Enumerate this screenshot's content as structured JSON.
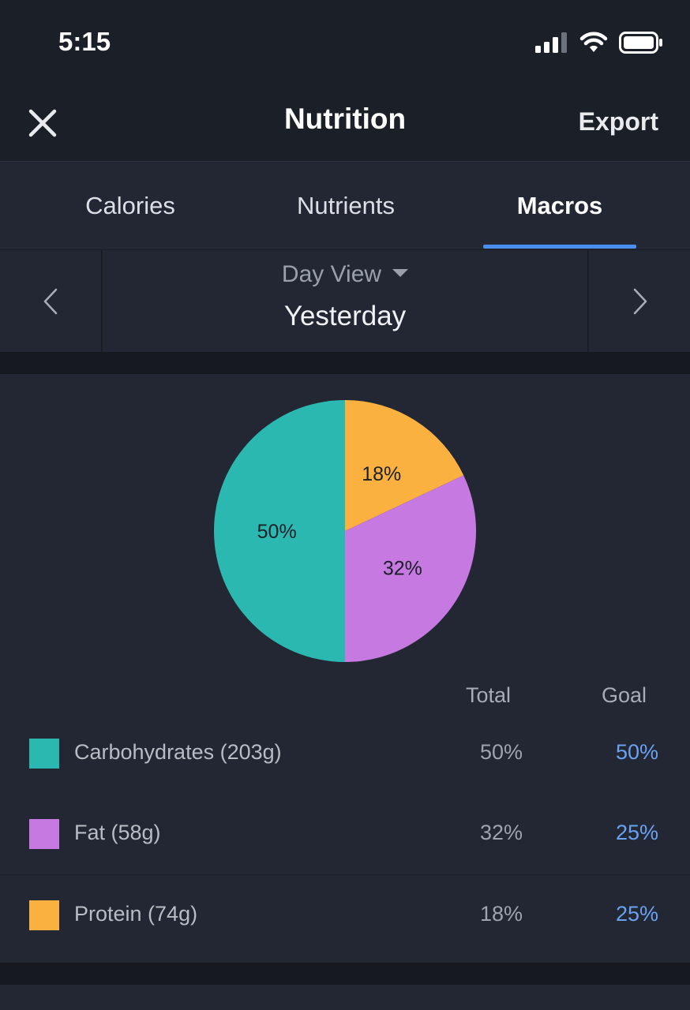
{
  "status_bar": {
    "time": "5:15"
  },
  "header": {
    "title": "Nutrition",
    "export_label": "Export"
  },
  "tabs": [
    {
      "label": "Calories",
      "active": false
    },
    {
      "label": "Nutrients",
      "active": false
    },
    {
      "label": "Macros",
      "active": true
    }
  ],
  "day_selector": {
    "view_label": "Day View",
    "day_label": "Yesterday"
  },
  "chart_data": {
    "type": "pie",
    "categories": [
      "Carbohydrates",
      "Fat",
      "Protein"
    ],
    "values": [
      50,
      32,
      18
    ],
    "data_labels": [
      "50%",
      "32%",
      "18%"
    ],
    "colors": [
      "#2bb8b0",
      "#c679e0",
      "#fbb140"
    ]
  },
  "table": {
    "headers": {
      "total": "Total",
      "goal": "Goal"
    },
    "rows": [
      {
        "label": "Carbohydrates (203g)",
        "total": "50%",
        "goal": "50%",
        "color": "#2bb8b0"
      },
      {
        "label": "Fat (58g)",
        "total": "32%",
        "goal": "25%",
        "color": "#c679e0"
      },
      {
        "label": "Protein (74g)",
        "total": "18%",
        "goal": "25%",
        "color": "#fbb140"
      }
    ]
  },
  "icons": {
    "close": "close-icon",
    "prev": "chevron-left-icon",
    "next": "chevron-right-icon",
    "signal": "cellular-signal-icon",
    "wifi": "wifi-icon",
    "battery": "battery-icon",
    "dropdown": "caret-down-icon"
  }
}
